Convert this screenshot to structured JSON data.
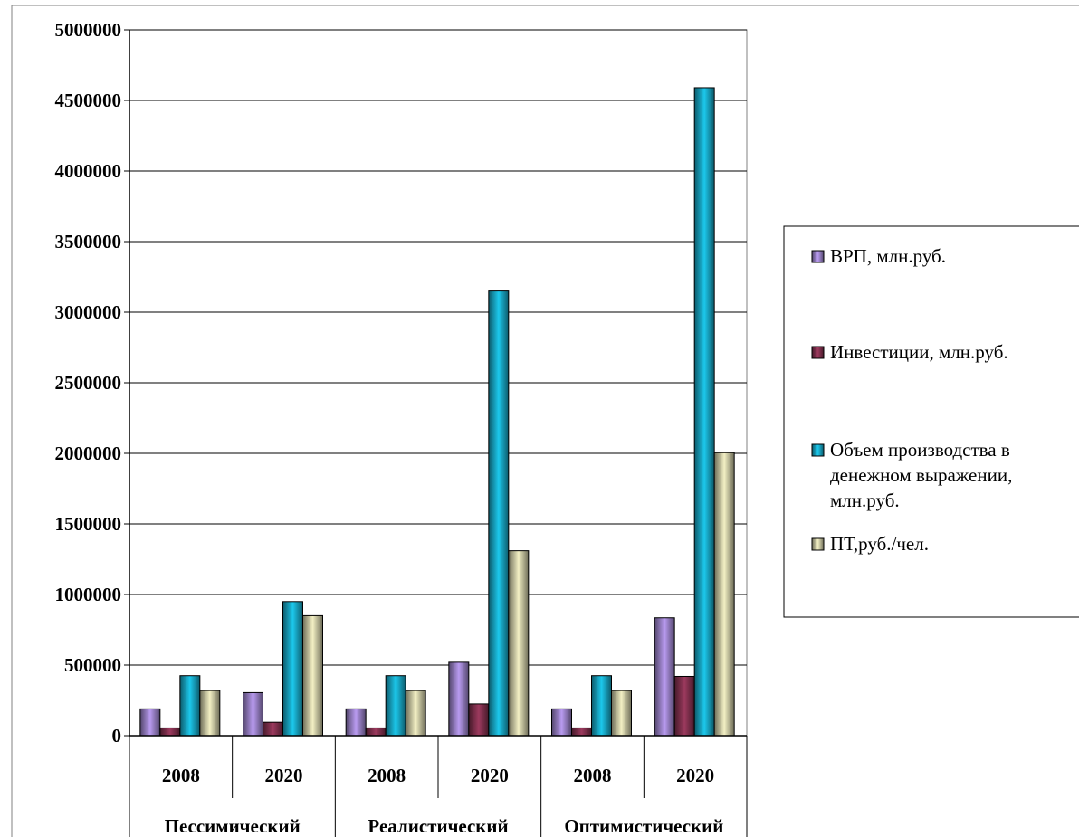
{
  "chart_data": {
    "type": "bar",
    "title": "",
    "xlabel": "",
    "ylabel": "",
    "ylim": [
      0,
      5000000
    ],
    "yticks": [
      0,
      500000,
      1000000,
      1500000,
      2000000,
      2500000,
      3000000,
      3500000,
      4000000,
      4500000,
      5000000
    ],
    "ytick_labels": [
      "0",
      "500000",
      "1000000",
      "1500000",
      "2000000",
      "2500000",
      "3000000",
      "3500000",
      "4000000",
      "4500000",
      "5000000"
    ],
    "grid": true,
    "legend_position": "right",
    "categories": [
      "2008",
      "2020",
      "2008",
      "2020",
      "2008",
      "2020"
    ],
    "groups": [
      {
        "label": "Пессимический",
        "span": 2
      },
      {
        "label": "Реалистический",
        "span": 2
      },
      {
        "label": "Оптимистический",
        "span": 2
      }
    ],
    "series": [
      {
        "name": "ВРП, млн.руб.",
        "color": "#b99bf0",
        "values": [
          190000,
          305000,
          190000,
          520000,
          190000,
          835000
        ]
      },
      {
        "name": "Инвестиции, млн.руб.",
        "color": "#9c3a5e",
        "values": [
          55000,
          95000,
          55000,
          225000,
          55000,
          420000
        ]
      },
      {
        "name": "Объем производства в денежном выражении, млн.руб.",
        "color": "#1cc8ec",
        "values": [
          425000,
          950000,
          425000,
          3150000,
          425000,
          4590000
        ]
      },
      {
        "name": "ПТ,руб./чел.",
        "color": "#f3f0c4",
        "values": [
          320000,
          850000,
          320000,
          1310000,
          320000,
          2005000
        ]
      }
    ],
    "legend_lines": [
      [
        "ВРП, млн.руб."
      ],
      [
        "Инвестиции, млн.руб."
      ],
      [
        "Объем производства в",
        "денежном выражении,",
        "млн.руб."
      ],
      [
        "ПТ,руб./чел."
      ]
    ]
  }
}
